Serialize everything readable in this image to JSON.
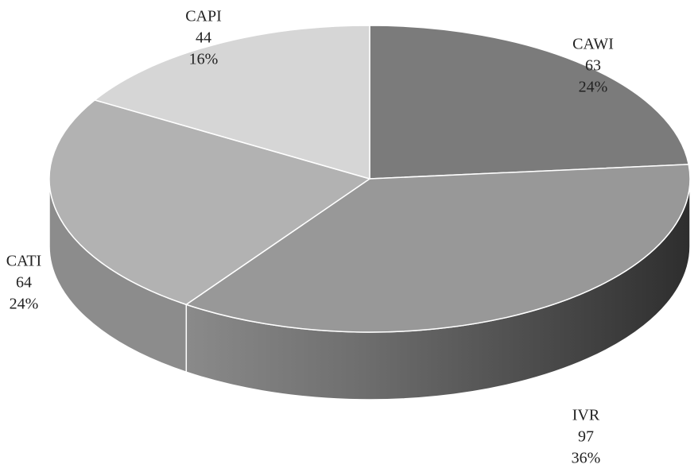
{
  "chart_data": {
    "type": "pie3d",
    "categories": [
      "CAWI",
      "IVR",
      "CATI",
      "CAPI"
    ],
    "values": [
      63,
      97,
      64,
      44
    ],
    "percentages": [
      24,
      36,
      24,
      16
    ],
    "percentage_labels": [
      "24%",
      "36%",
      "24%",
      "16%"
    ],
    "colors": [
      "#7b7b7b",
      "#989898",
      "#b2b2b2",
      "#d6d6d6"
    ]
  }
}
